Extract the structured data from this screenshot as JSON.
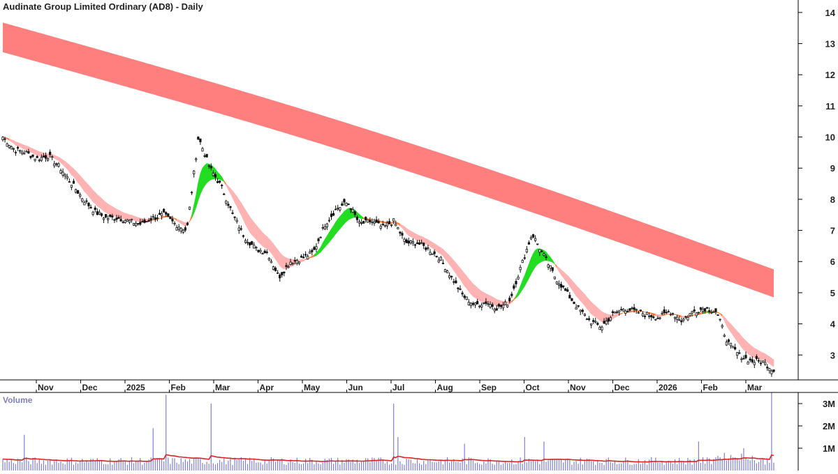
{
  "title": "Audinate Group Limited Ordinary (AD8) - Daily",
  "volume_label": "Volume",
  "colors": {
    "upper_band": "#ff7f7f",
    "lower_band": "#ffb3b3",
    "band_up": "#22dd22",
    "band_transition": "#ff7a2a",
    "volume_bar": "#7f7fcf",
    "volume_avg": "#dd2222",
    "candle": "#111111"
  },
  "chart_data": [
    {
      "type": "line",
      "name": "price",
      "x_ticks": [
        "Nov",
        "Dec",
        "2025",
        "Feb",
        "Mar",
        "Apr",
        "May",
        "Jun",
        "Jul",
        "Aug",
        "Sep",
        "Oct",
        "Nov",
        "Dec",
        "2026",
        "Feb",
        "Mar"
      ],
      "y_ticks": [
        3,
        4,
        5,
        6,
        7,
        8,
        9,
        10,
        11,
        12,
        13,
        14
      ],
      "ylim": [
        2.2,
        14.4
      ],
      "series": [
        {
          "values": [
            10.0,
            9.6,
            9.5,
            9.3,
            9.4,
            9.0,
            8.5,
            8.0,
            7.6,
            7.4,
            7.4,
            7.3,
            7.2,
            7.4,
            7.5,
            7.2,
            7.0,
            10.0,
            9.0,
            8.4,
            7.5,
            6.8,
            6.4,
            6.3,
            5.5,
            6.0,
            6.1,
            6.3,
            7.2,
            7.7,
            7.9,
            7.2,
            7.3,
            7.1,
            7.3,
            6.6,
            6.6,
            6.4,
            6.1,
            5.5,
            4.9,
            4.6,
            4.7,
            4.5,
            4.7,
            5.8,
            6.9,
            6.2,
            5.5,
            5.0,
            4.5,
            4.1,
            3.9,
            4.3,
            4.5,
            4.4,
            4.3,
            4.2,
            4.4,
            4.1,
            4.4,
            4.5,
            4.4,
            3.4,
            3.0,
            2.8,
            2.8,
            2.5
          ]
        }
      ]
    },
    {
      "type": "bar",
      "name": "volume",
      "y_ticks": [
        "1M",
        "2M",
        "3M"
      ],
      "ylim": [
        0,
        3.5
      ]
    }
  ]
}
